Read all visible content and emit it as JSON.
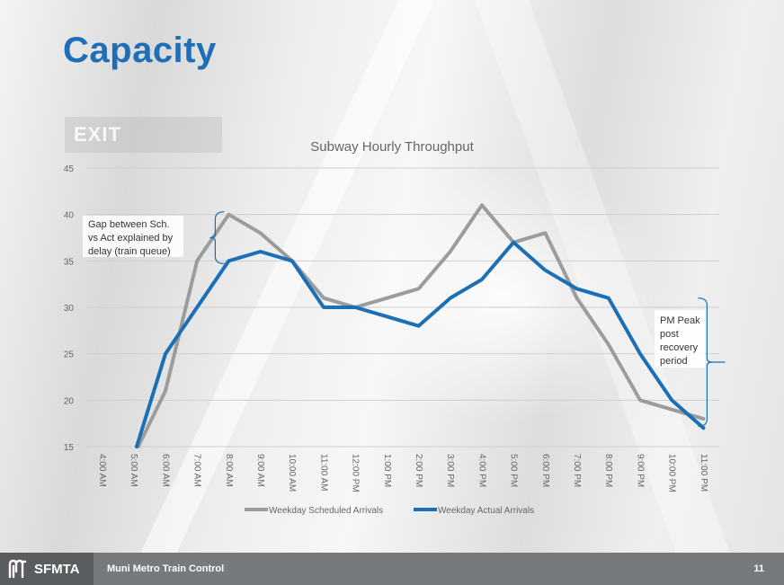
{
  "slide": {
    "title": "Capacity",
    "background_sign": "EXIT"
  },
  "footer": {
    "brand": "SFMTA",
    "title": "Muni Metro Train Control",
    "page_number": "11"
  },
  "colors": {
    "title": "#1f6fb8",
    "scheduled": "#9a9c9e",
    "actual": "#1a6fb5",
    "footer": "#777a7c"
  },
  "chart_data": {
    "type": "line",
    "title": "Subway Hourly Throughput",
    "xlabel": "",
    "ylabel": "",
    "categories": [
      "4:00 AM",
      "5:00 AM",
      "6:00 AM",
      "7:00 AM",
      "8:00 AM",
      "9:00 AM",
      "10:00 AM",
      "11:00 AM",
      "12:00 PM",
      "1:00 PM",
      "2:00 PM",
      "3:00 PM",
      "4:00 PM",
      "5:00 PM",
      "6:00 PM",
      "7:00 PM",
      "8:00 PM",
      "9:00 PM",
      "10:00 PM",
      "11:00 PM"
    ],
    "ylim": [
      15,
      45
    ],
    "yticks": [
      15,
      20,
      25,
      30,
      35,
      40,
      45
    ],
    "grid": true,
    "legend": "bottom",
    "series": [
      {
        "name": "Weekday Scheduled Arrivals",
        "color": "#9a9c9e",
        "values": [
          null,
          14,
          21,
          35,
          40,
          38,
          35,
          31,
          30,
          31,
          32,
          36,
          41,
          37,
          38,
          31,
          26,
          20,
          19,
          18
        ]
      },
      {
        "name": "Weekday Actual Arrivals",
        "color": "#1a6fb5",
        "values": [
          null,
          14,
          25,
          30,
          35,
          36,
          35,
          30,
          30,
          29,
          28,
          31,
          33,
          37,
          34,
          32,
          31,
          25,
          20,
          17
        ]
      }
    ],
    "annotations": [
      {
        "text_lines": [
          "Gap between Sch.",
          "vs Act explained by",
          "delay (train queue)"
        ],
        "from_index": 4,
        "y_range": [
          35,
          40
        ]
      },
      {
        "text_lines": [
          "PM Peak",
          "post",
          "recovery",
          "period"
        ],
        "from_index": 19,
        "y_range": [
          17,
          31
        ]
      }
    ]
  }
}
